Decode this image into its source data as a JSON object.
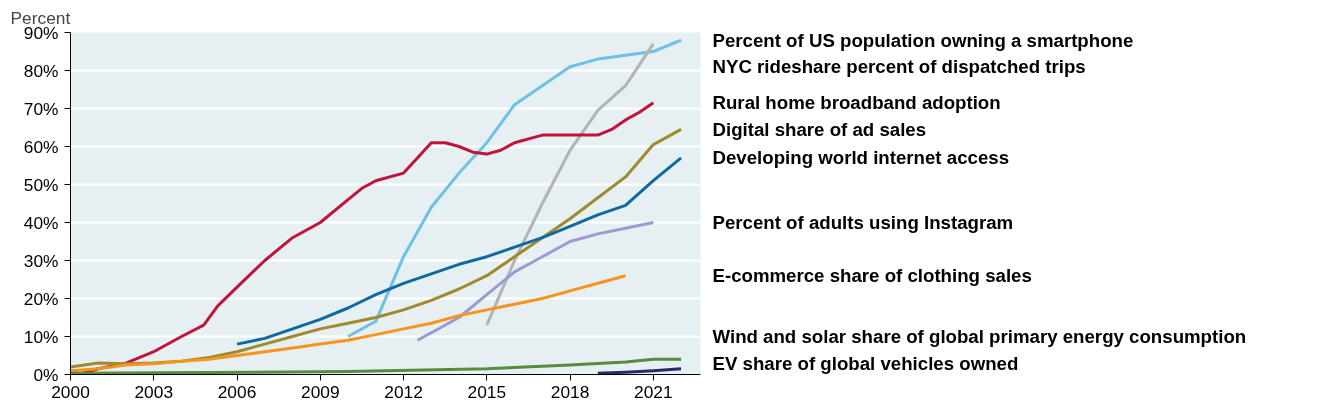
{
  "chart_data": {
    "type": "line",
    "ylabel": "Percent",
    "xlim": [
      2000,
      2022.7
    ],
    "xticks": [
      2000,
      2003,
      2006,
      2009,
      2012,
      2015,
      2018,
      2021
    ],
    "ylim": [
      0,
      90
    ],
    "yticks": [
      {
        "value": 0,
        "label": "0%"
      },
      {
        "value": 10,
        "label": "10%"
      },
      {
        "value": 20,
        "label": "20%"
      },
      {
        "value": 30,
        "label": "30%"
      },
      {
        "value": 40,
        "label": "40%"
      },
      {
        "value": 50,
        "label": "50%"
      },
      {
        "value": 60,
        "label": "60%"
      },
      {
        "value": 70,
        "label": "70%"
      },
      {
        "value": 80,
        "label": "80%"
      },
      {
        "value": 90,
        "label": "90%"
      }
    ],
    "grid": "y",
    "line_style": "solid",
    "series": [
      {
        "name": "Percent of US population owning a smartphone",
        "color": "#6ec1e4",
        "x": [
          2010,
          2011,
          2012,
          2013,
          2014,
          2015,
          2016,
          2017,
          2018,
          2019,
          2020,
          2021,
          2022
        ],
        "values": [
          10,
          14,
          31,
          44,
          53,
          61,
          71,
          76,
          81,
          83,
          84,
          85,
          88
        ]
      },
      {
        "name": "NYC rideshare percent of dispatched trips",
        "color": "#b3b3b3",
        "x": [
          2015,
          2016,
          2017,
          2018,
          2019,
          2020,
          2021
        ],
        "values": [
          13,
          30,
          45,
          59,
          69.5,
          76,
          87
        ]
      },
      {
        "name": "Rural home broadband adoption",
        "color": "#c0143c",
        "x": [
          2000.3,
          2001,
          2002,
          2003,
          2004,
          2004.8,
          2005.3,
          2006,
          2007,
          2008,
          2009,
          2010,
          2010.5,
          2011,
          2012,
          2012.5,
          2013,
          2013.5,
          2014,
          2014.5,
          2015,
          2015.5,
          2016,
          2017,
          2018,
          2019,
          2019.5,
          2020,
          2020.5,
          2021
        ],
        "values": [
          0,
          1.5,
          3,
          6,
          10,
          13,
          18,
          23,
          30,
          36,
          40,
          46,
          49,
          51,
          53,
          57,
          61,
          61,
          60,
          58.5,
          58,
          59,
          61,
          63,
          63,
          63,
          64.5,
          67,
          69,
          71.5
        ]
      },
      {
        "name": "Digital share of ad sales",
        "color": "#a08a2e",
        "x": [
          2000,
          2001,
          2002,
          2003,
          2004,
          2005,
          2006,
          2007,
          2008,
          2009,
          2010,
          2011,
          2012,
          2013,
          2014,
          2015,
          2016,
          2017,
          2018,
          2019,
          2020,
          2021,
          2022
        ],
        "values": [
          2,
          3,
          2.8,
          3,
          3.5,
          4.5,
          6,
          8,
          10,
          12,
          13.5,
          15,
          17,
          19.5,
          22.5,
          26,
          31,
          36,
          41,
          46.5,
          52,
          60.5,
          64.5
        ]
      },
      {
        "name": "Developing world internet access",
        "color": "#0f6aa0",
        "x": [
          2006,
          2007,
          2008,
          2009,
          2010,
          2011,
          2012,
          2013,
          2014,
          2015,
          2016,
          2017,
          2018,
          2019,
          2020,
          2021,
          2022
        ],
        "values": [
          8,
          9.5,
          12,
          14.5,
          17.5,
          21,
          24,
          26.5,
          29,
          31,
          33.5,
          36,
          39,
          42,
          44.5,
          51,
          57
        ]
      },
      {
        "name": "Percent of adults using Instagram",
        "color": "#9b9bd4",
        "x": [
          2012.5,
          2013,
          2014,
          2015,
          2016,
          2017,
          2018,
          2019,
          2020,
          2021
        ],
        "values": [
          9,
          11,
          15,
          21,
          27,
          31,
          35,
          37,
          38.5,
          40
        ]
      },
      {
        "name": "E-commerce share of clothing sales",
        "color": "#f7941d",
        "x": [
          2000,
          2001,
          2002,
          2003,
          2004,
          2005,
          2006,
          2007,
          2008,
          2009,
          2010,
          2011,
          2012,
          2013,
          2014,
          2015,
          2016,
          2017,
          2018,
          2019,
          2020
        ],
        "values": [
          1,
          1.5,
          2.5,
          2.8,
          3.5,
          4,
          5,
          6,
          7,
          8,
          9,
          10.5,
          12,
          13.5,
          15.5,
          17,
          18.5,
          20,
          22,
          24,
          26
        ]
      },
      {
        "name": "Wind and solar share of global primary energy consumption",
        "color": "#5a8a3c",
        "x": [
          2000,
          2005,
          2010,
          2015,
          2018,
          2020,
          2021,
          2022
        ],
        "values": [
          0.3,
          0.5,
          0.8,
          1.5,
          2.5,
          3.3,
          4,
          4
        ]
      },
      {
        "name": "EV share of global vehicles owned",
        "color": "#2a2a66",
        "x": [
          2019,
          2020,
          2021,
          2022
        ],
        "values": [
          0.3,
          0.6,
          1,
          1.5
        ]
      }
    ]
  }
}
